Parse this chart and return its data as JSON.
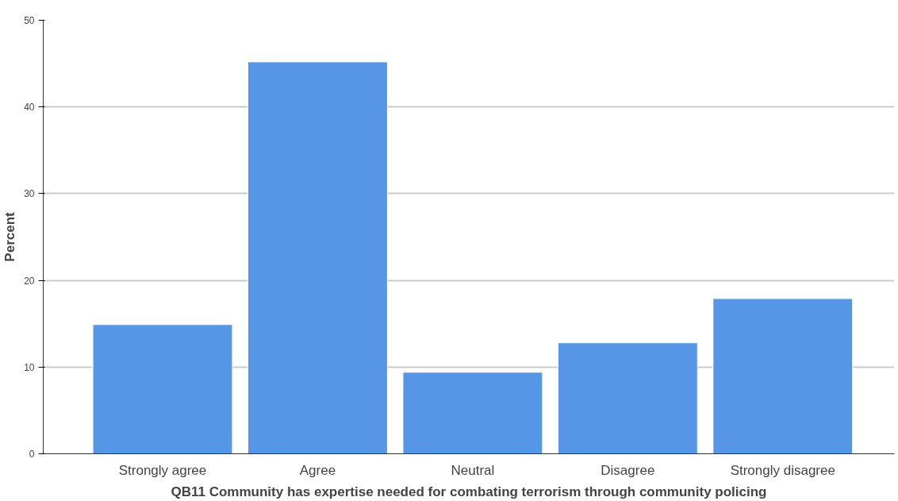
{
  "chart_data": {
    "type": "bar",
    "xlabel": "QB11 Community has expertise needed for combating terrorism through community policing",
    "ylabel": "Percent",
    "categories": [
      "Strongly agree",
      "Agree",
      "Neutral",
      "Disagree",
      "Strongly disagree"
    ],
    "values": [
      14.9,
      45.2,
      9.4,
      12.8,
      17.9
    ],
    "color": "#5596e6",
    "ylim": [
      0,
      50
    ],
    "yticks": [
      0,
      10,
      20,
      30,
      40,
      50
    ],
    "grid": "y"
  }
}
